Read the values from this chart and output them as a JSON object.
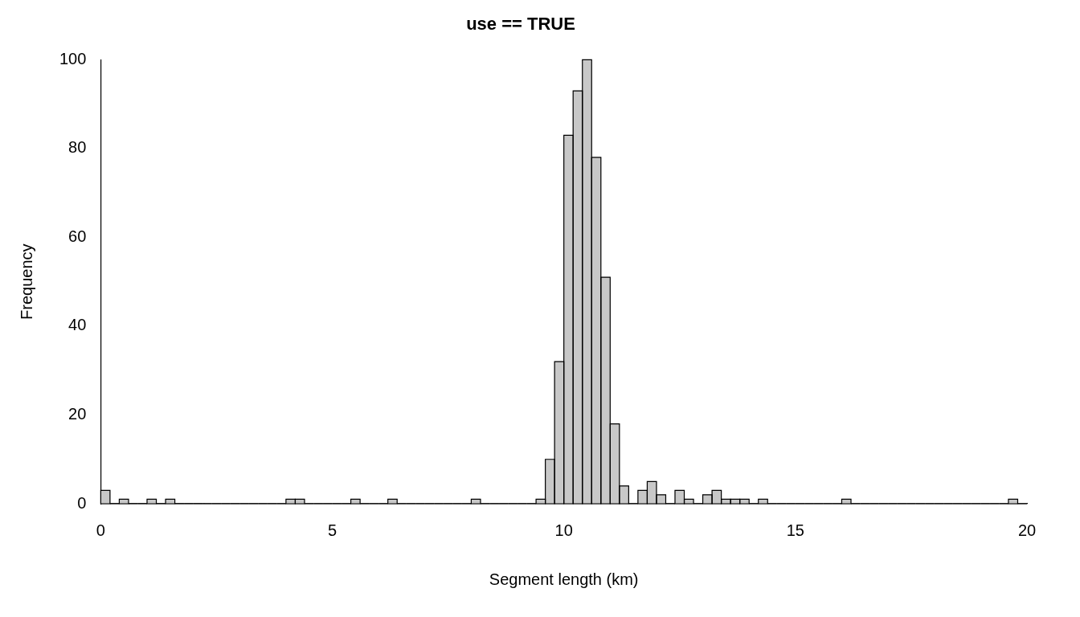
{
  "chart_data": {
    "type": "histogram",
    "title": "use == TRUE",
    "xlabel": "Segment length (km)",
    "ylabel": "Frequency",
    "bins": [
      0,
      0.2,
      0.4,
      0.6,
      0.8,
      1,
      1.2,
      1.4,
      1.6,
      1.8,
      2,
      2.2,
      2.4,
      2.6,
      2.8,
      3,
      3.2,
      3.4,
      3.6,
      3.8,
      4,
      4.2,
      4.4,
      4.6,
      4.8,
      5,
      5.2,
      5.4,
      5.6,
      5.8,
      6,
      6.2,
      6.4,
      6.6,
      6.8,
      7,
      7.2,
      7.4,
      7.6,
      7.8,
      8,
      8.2,
      8.4,
      8.6,
      8.8,
      9,
      9.2,
      9.4,
      9.6,
      9.8,
      10,
      10.2,
      10.4,
      10.6,
      10.8,
      11,
      11.2,
      11.4,
      11.6,
      11.8,
      12,
      12.2,
      12.4,
      12.6,
      12.8,
      13,
      13.2,
      13.4,
      13.6,
      13.8,
      14,
      14.2,
      14.4,
      14.6,
      14.8,
      15,
      15.2,
      15.4,
      15.6,
      15.8,
      16,
      16.2,
      16.4,
      16.6,
      16.8,
      17,
      17.2,
      17.4,
      17.6,
      17.8,
      18,
      18.2,
      18.4,
      18.6,
      18.8,
      19,
      19.2,
      19.4,
      19.6,
      19.8,
      20
    ],
    "values": [
      3,
      0,
      1,
      0,
      0,
      1,
      0,
      1,
      0,
      0,
      0,
      0,
      0,
      0,
      0,
      0,
      0,
      0,
      0,
      0,
      1,
      1,
      0,
      0,
      0,
      0,
      0,
      1,
      0,
      0,
      0,
      1,
      0,
      0,
      0,
      0,
      0,
      0,
      0,
      0,
      1,
      0,
      0,
      0,
      0,
      0,
      0,
      1,
      10,
      32,
      83,
      93,
      100,
      78,
      51,
      18,
      4,
      0,
      3,
      5,
      2,
      0,
      3,
      1,
      0,
      2,
      3,
      1,
      1,
      1,
      0,
      1,
      0,
      0,
      0,
      0,
      0,
      0,
      0,
      0,
      1,
      0,
      0,
      0,
      0,
      0,
      0,
      0,
      0,
      0,
      0,
      0,
      0,
      0,
      0,
      0,
      0,
      0,
      1,
      0
    ],
    "color": "#c8c8c8",
    "xlim": [
      0,
      20
    ],
    "xticks": [
      0,
      5,
      10,
      15,
      20
    ],
    "ylim": [
      0,
      100
    ],
    "yticks": [
      0,
      20,
      40,
      60,
      80,
      100
    ],
    "grid": false,
    "legend": false
  }
}
